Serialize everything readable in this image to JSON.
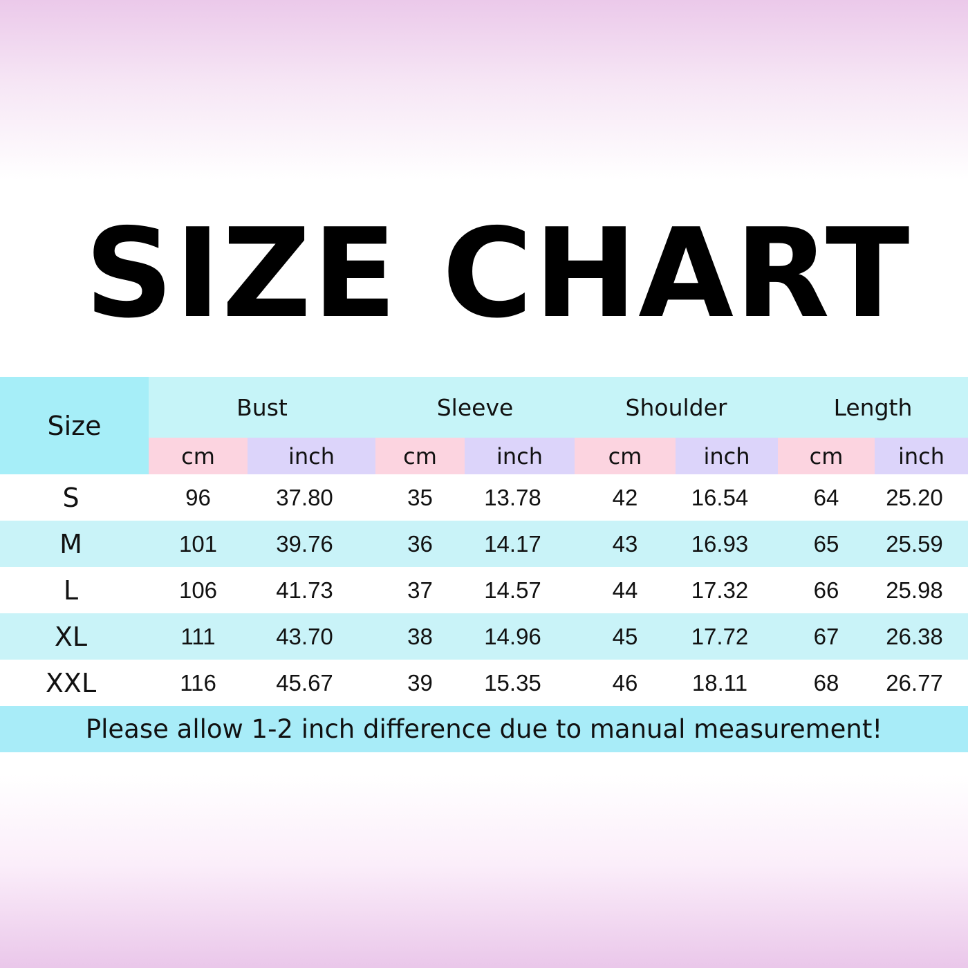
{
  "title": "SIZE CHART",
  "table": {
    "size_header": "Size",
    "groups": [
      "Bust",
      "Sleeve",
      "Shoulder",
      "Length"
    ],
    "units": [
      "cm",
      "inch",
      "cm",
      "inch",
      "cm",
      "inch",
      "cm",
      "inch"
    ],
    "rows": [
      {
        "size": "S",
        "values": [
          "96",
          "37.80",
          "35",
          "13.78",
          "42",
          "16.54",
          "64",
          "25.20"
        ]
      },
      {
        "size": "M",
        "values": [
          "101",
          "39.76",
          "36",
          "14.17",
          "43",
          "16.93",
          "65",
          "25.59"
        ]
      },
      {
        "size": "L",
        "values": [
          "106",
          "41.73",
          "37",
          "14.57",
          "44",
          "17.32",
          "66",
          "25.98"
        ]
      },
      {
        "size": "XL",
        "values": [
          "111",
          "43.70",
          "38",
          "14.96",
          "45",
          "17.72",
          "67",
          "26.38"
        ]
      },
      {
        "size": "XXL",
        "values": [
          "116",
          "45.67",
          "39",
          "15.35",
          "46",
          "18.11",
          "68",
          "26.77"
        ]
      }
    ],
    "note": "Please allow 1-2 inch difference due to manual measurement!"
  },
  "colors": {
    "size_cell": "#a6eef8",
    "header": "#c6f4f8",
    "cm": "#fcd4e0",
    "inch": "#dcd4fa",
    "alt_row": "#c9f3f8",
    "footer": "#a8ecf8"
  }
}
